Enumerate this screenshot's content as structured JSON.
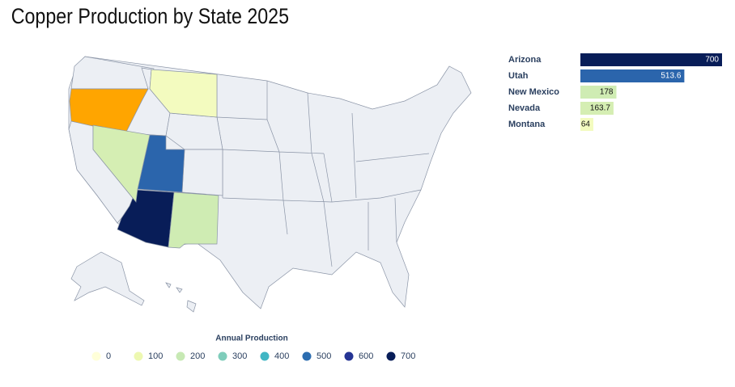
{
  "chart_data": {
    "type": "bar",
    "orientation": "horizontal",
    "title": "Copper Production by State 2025",
    "categories": [
      "Arizona",
      "Utah",
      "New Mexico",
      "Nevada",
      "Montana"
    ],
    "values": [
      700,
      513.6,
      178,
      163.7,
      64
    ],
    "xlim": [
      0,
      700
    ],
    "colorscale": {
      "title": "Annual Production",
      "ticks": [
        0,
        100,
        200,
        300,
        400,
        500,
        600,
        700
      ],
      "colors": [
        "#ffffd9",
        "#edf8b1",
        "#c7e9b4",
        "#7fcdbb",
        "#41b6c4",
        "#2c6db0",
        "#253494",
        "#081d58"
      ]
    }
  }
}
